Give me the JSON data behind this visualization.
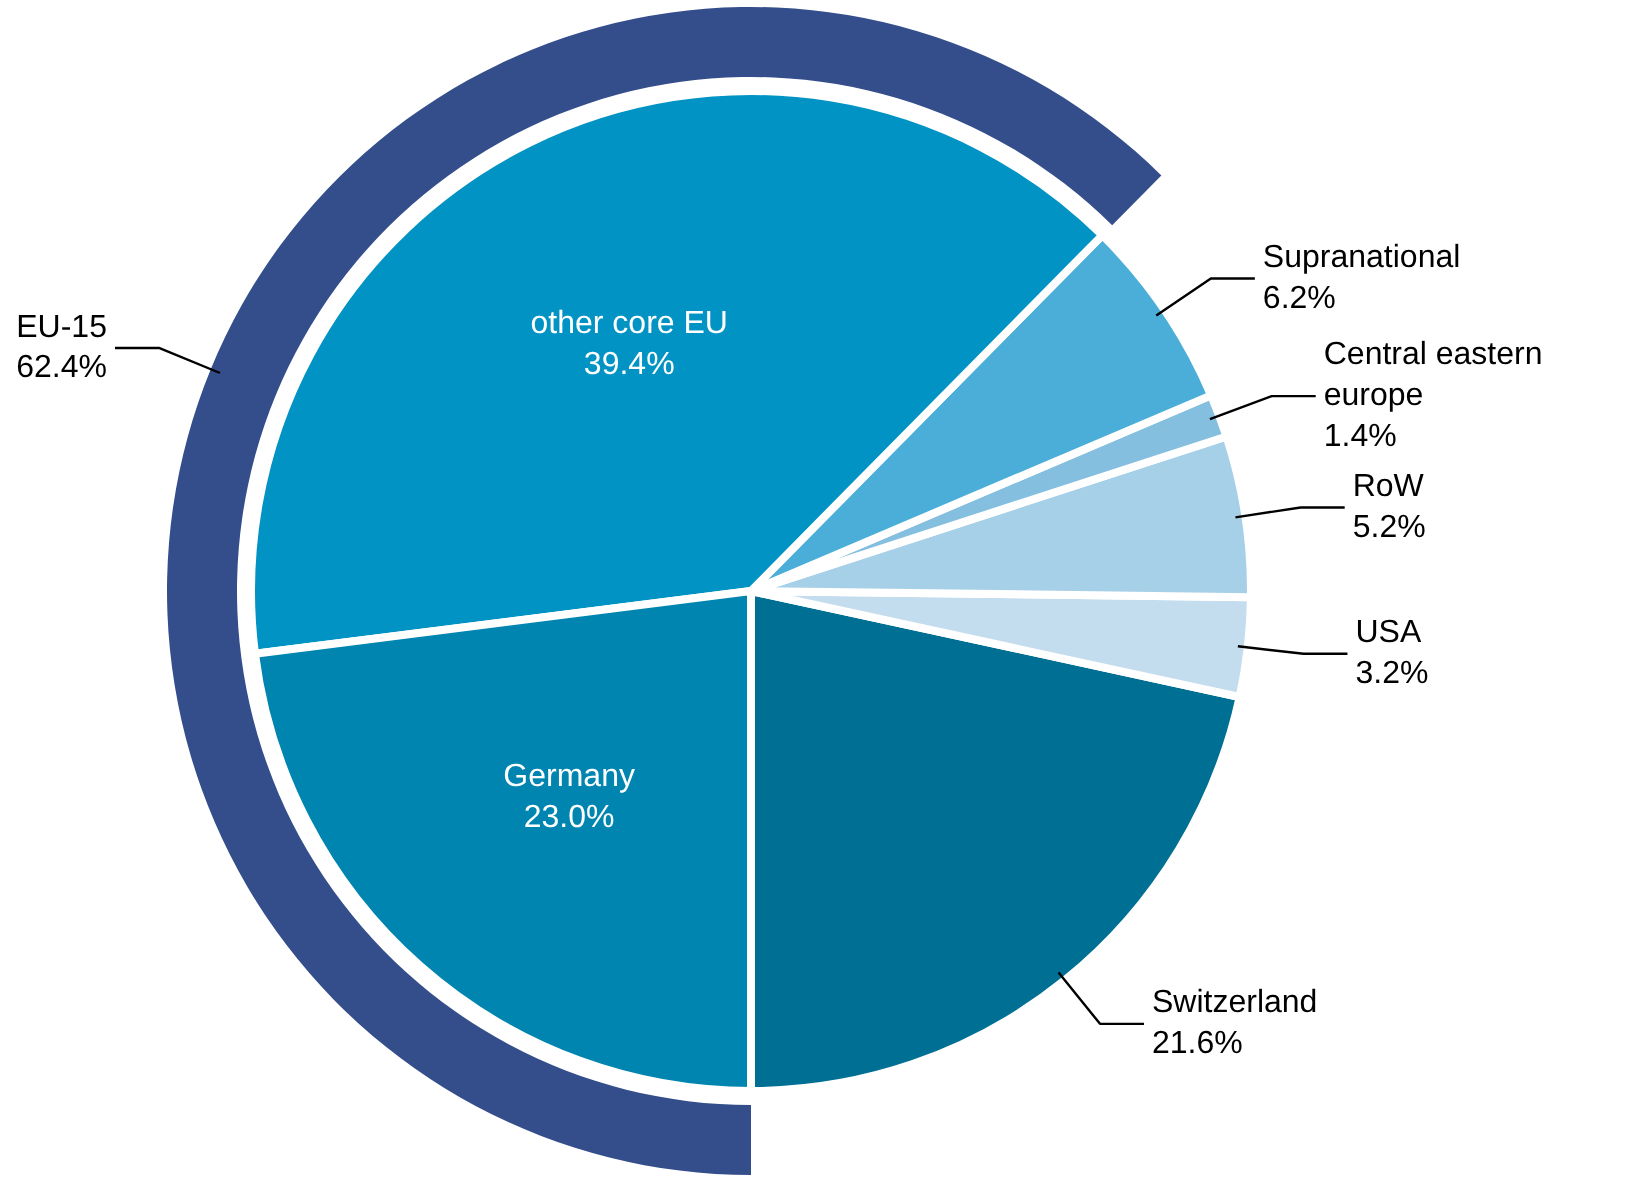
{
  "chart_data": {
    "type": "pie",
    "categories": [
      "Switzerland",
      "USA",
      "RoW",
      "Central eastern europe",
      "Supranational",
      "other core EU",
      "Germany"
    ],
    "series": [
      {
        "type": "pie",
        "values": [
          21.6,
          3.2,
          5.2,
          1.4,
          6.2,
          39.4,
          23.0
        ],
        "colors": [
          "#006f94",
          "#c3dcee",
          "#a6cfe8",
          "#85bfe0",
          "#4baed8",
          "#0093c4",
          "#0084b0"
        ],
        "value_labels": [
          "21.6%",
          "3.2%",
          "5.2%",
          "1.4%",
          "6.2%",
          "39.4%",
          "23.0%"
        ]
      },
      {
        "type": "donut",
        "name": "EU-15",
        "values": [
          null,
          null,
          null,
          null,
          null,
          62.4,
          null
        ],
        "colors": [
          null,
          null,
          null,
          null,
          null,
          "#344e8c",
          null
        ],
        "value_labels": [
          null,
          null,
          null,
          null,
          null,
          "62.4%",
          null
        ]
      }
    ]
  }
}
